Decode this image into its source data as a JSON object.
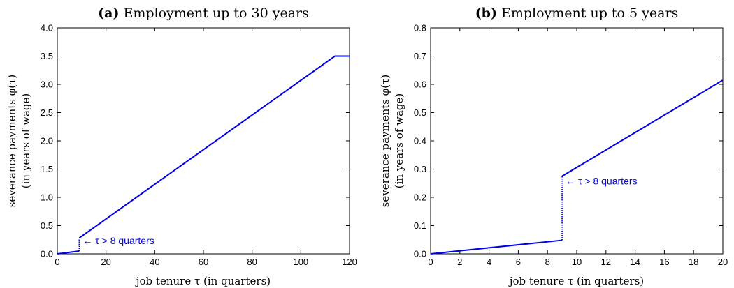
{
  "chart_data": [
    {
      "type": "line",
      "title_prefix": "(a)",
      "title": "Employment up to 30 years",
      "xlabel": "job tenure τ (in quarters)",
      "ylabel_line1": "severance payments φ(τ)",
      "ylabel_line2": "(in years of wage)",
      "xlim": [
        0,
        120
      ],
      "ylim": [
        0,
        4.0
      ],
      "xticks": [
        "0",
        "20",
        "40",
        "60",
        "80",
        "100",
        "120"
      ],
      "yticks": [
        "0.0",
        "0.5",
        "1.0",
        "1.5",
        "2.0",
        "2.5",
        "3.0",
        "3.5",
        "4.0"
      ],
      "color": "#0000e6",
      "segments": [
        {
          "style": "solid",
          "x": [
            0,
            9
          ],
          "y": [
            0.0,
            0.05
          ]
        },
        {
          "style": "dotted",
          "x": [
            9,
            9
          ],
          "y": [
            0.05,
            0.28
          ]
        },
        {
          "style": "solid",
          "x": [
            9,
            114,
            120
          ],
          "y": [
            0.28,
            3.5,
            3.5
          ]
        }
      ],
      "annotation": {
        "text": "← τ > 8 quarters",
        "x": 9,
        "y": 0.22
      }
    },
    {
      "type": "line",
      "title_prefix": "(b)",
      "title": "Employment up to 5 years",
      "xlabel": "job tenure τ (in quarters)",
      "ylabel_line1": "severance payments φ(τ)",
      "ylabel_line2": "(in years of wage)",
      "xlim": [
        0,
        20
      ],
      "ylim": [
        0,
        0.8
      ],
      "xticks": [
        "0",
        "2",
        "4",
        "6",
        "8",
        "10",
        "12",
        "14",
        "16",
        "18",
        "20"
      ],
      "yticks": [
        "0.0",
        "0.1",
        "0.2",
        "0.3",
        "0.4",
        "0.5",
        "0.6",
        "0.7",
        "0.8"
      ],
      "color": "#0000e6",
      "segments": [
        {
          "style": "solid",
          "x": [
            0,
            9
          ],
          "y": [
            0.0,
            0.048
          ]
        },
        {
          "style": "dotted",
          "x": [
            9,
            9
          ],
          "y": [
            0.048,
            0.275
          ]
        },
        {
          "style": "solid",
          "x": [
            9,
            20
          ],
          "y": [
            0.275,
            0.615
          ]
        }
      ],
      "annotation": {
        "text": "← τ > 8 quarters",
        "x": 9,
        "y": 0.255
      }
    }
  ]
}
